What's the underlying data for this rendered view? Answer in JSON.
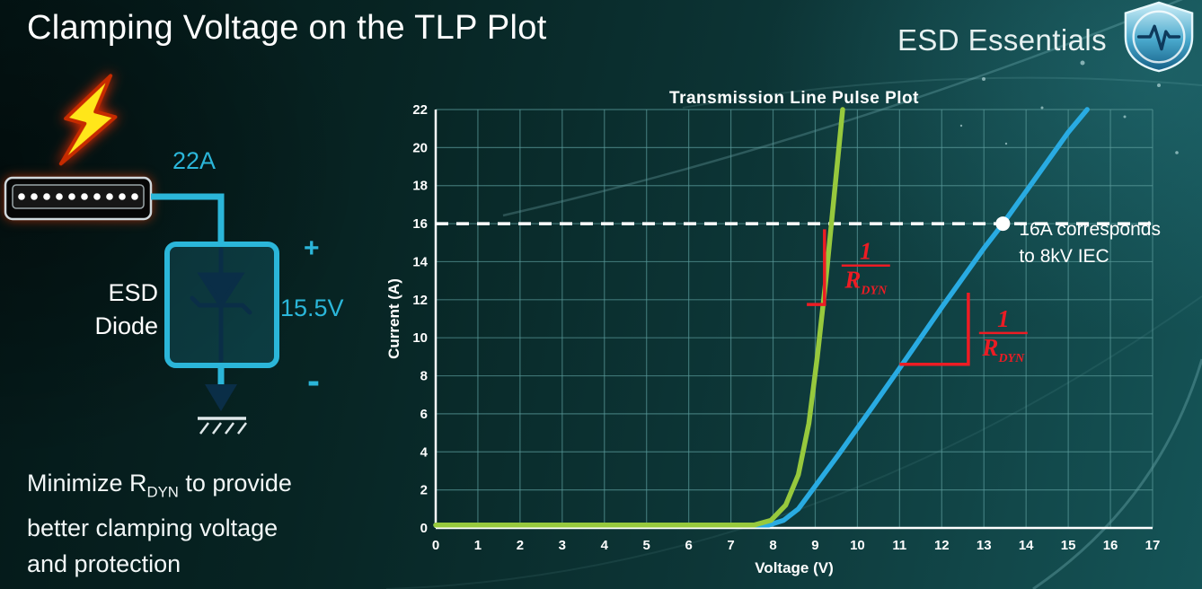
{
  "slide": {
    "title": "Clamping Voltage on the TLP Plot"
  },
  "brand": {
    "name": "ESD Essentials"
  },
  "circuit": {
    "surge_current_label": "22A",
    "device_label_line1": "ESD",
    "device_label_line2": "Diode",
    "plus_label": "+",
    "clamping_voltage_label": "15.5V",
    "minus_label": "-"
  },
  "note": {
    "line1_prefix": "Minimize R",
    "line1_subscript": "DYN",
    "line1_suffix": " to provide",
    "line2": "better clamping voltage",
    "line3": "and protection"
  },
  "colors": {
    "accent_cyan": "#2bb6d9",
    "lightning_yellow": "#ffe61a",
    "annotation_red": "#ed1c24",
    "green_curve": "#97c93d",
    "blue_curve": "#29abe2",
    "grid_teal": "#5a9a9a"
  },
  "chart_data": {
    "type": "line",
    "title": "Transmission Line Pulse Plot",
    "xlabel": "Voltage (V)",
    "ylabel": "Current (A)",
    "xlim": [
      0,
      17
    ],
    "ylim": [
      0,
      22
    ],
    "x_ticks": [
      0,
      1,
      2,
      3,
      4,
      5,
      6,
      7,
      8,
      9,
      10,
      11,
      12,
      13,
      14,
      15,
      16,
      17
    ],
    "y_ticks": [
      0,
      2,
      4,
      6,
      8,
      10,
      12,
      14,
      16,
      18,
      20,
      22
    ],
    "grid": true,
    "grid_color": "#5a9a9a",
    "axis_color": "#ffffff",
    "legend_position": "none",
    "series": [
      {
        "name": "low-rdyn-diode-green",
        "color": "#97c93d",
        "points": [
          [
            0,
            0.15
          ],
          [
            7.55,
            0.15
          ],
          [
            7.95,
            0.4
          ],
          [
            8.3,
            1.2
          ],
          [
            8.6,
            2.8
          ],
          [
            8.85,
            5.5
          ],
          [
            9.05,
            9
          ],
          [
            9.25,
            13
          ],
          [
            9.45,
            17.5
          ],
          [
            9.65,
            22
          ]
        ]
      },
      {
        "name": "high-rdyn-diode-blue",
        "color": "#29abe2",
        "points": [
          [
            0,
            0.15
          ],
          [
            7.9,
            0.15
          ],
          [
            8.25,
            0.4
          ],
          [
            8.6,
            1.0
          ],
          [
            9.0,
            2.2
          ],
          [
            9.6,
            4.0
          ],
          [
            10.4,
            6.5
          ],
          [
            11,
            8.4
          ],
          [
            12,
            11.6
          ],
          [
            13,
            14.7
          ],
          [
            13.45,
            16
          ],
          [
            14,
            17.7
          ],
          [
            15,
            20.8
          ],
          [
            15.45,
            22
          ]
        ]
      }
    ],
    "reference_line": {
      "y": 16,
      "style": "dashed",
      "color": "#ffffff"
    },
    "marker": {
      "x": 13.45,
      "y": 16,
      "color": "#ffffff",
      "label_line1": "16A corresponds",
      "label_line2": "to 8kV IEC"
    },
    "slope_annotations": [
      {
        "color": "#ed1c24",
        "numerator": "1",
        "denominator": "R",
        "denominator_sub": "DYN",
        "bracket": [
          [
            9.22,
            15.7
          ],
          [
            9.22,
            11.75
          ],
          [
            8.8,
            11.75
          ]
        ],
        "fraction_at": [
          10.2,
          13.8
        ]
      },
      {
        "color": "#ed1c24",
        "numerator": "1",
        "denominator": "R",
        "denominator_sub": "DYN",
        "bracket": [
          [
            11.0,
            8.6
          ],
          [
            12.63,
            8.6
          ],
          [
            12.63,
            12.37
          ]
        ],
        "fraction_at": [
          13.46,
          10.25
        ]
      }
    ]
  }
}
